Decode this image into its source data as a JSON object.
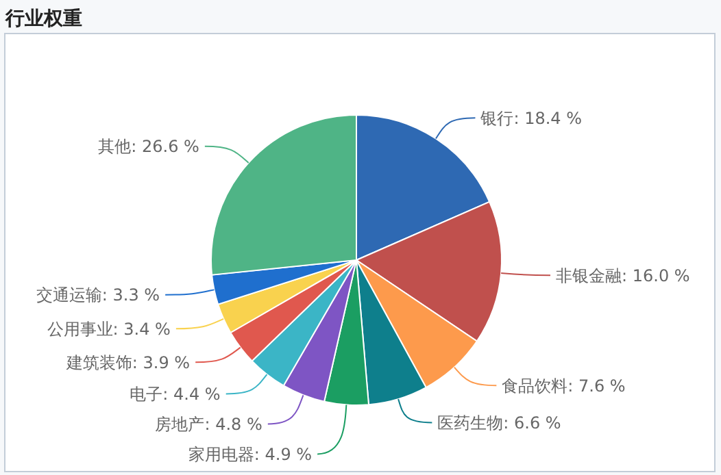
{
  "chart_data": {
    "type": "pie",
    "title": "行业权重",
    "categories": [
      "银行",
      "非银金融",
      "食品饮料",
      "医药生物",
      "家用电器",
      "房地产",
      "电子",
      "建筑装饰",
      "公用事业",
      "交通运输",
      "其他"
    ],
    "values": [
      18.4,
      16.0,
      7.6,
      6.6,
      4.9,
      4.8,
      4.4,
      3.9,
      3.4,
      3.3,
      26.6
    ],
    "value_labels": [
      "18.4 %",
      "16.0 %",
      "7.6 %",
      "6.6 %",
      "4.9 %",
      "4.8 %",
      "4.4 %",
      "3.9 %",
      "3.4 %",
      "3.3 %",
      "26.6 %"
    ],
    "colors": [
      "#2e69b3",
      "#c0504d",
      "#fd9a4c",
      "#0e7f8c",
      "#1b9e62",
      "#7e55c4",
      "#3bb5c6",
      "#e0584e",
      "#f9d24e",
      "#1f6fce",
      "#4fb486"
    ]
  }
}
